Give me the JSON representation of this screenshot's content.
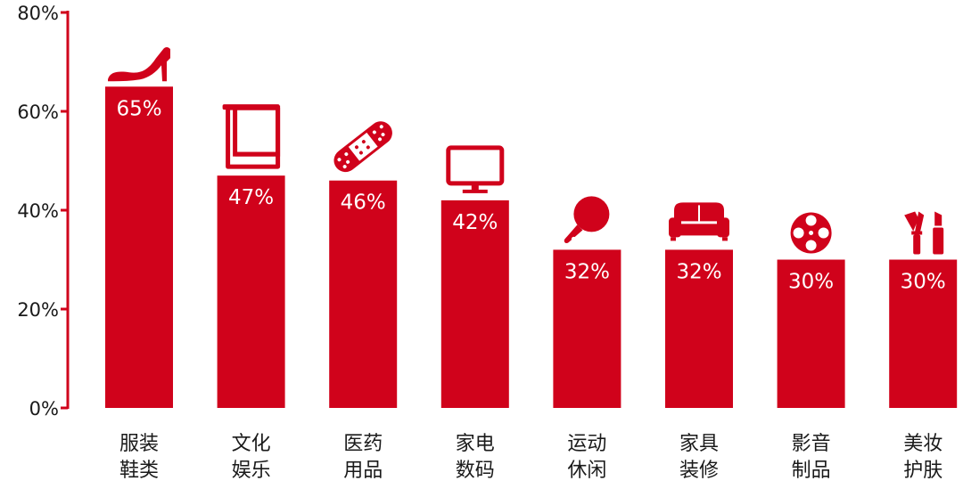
{
  "chart_data": {
    "type": "bar",
    "title": "",
    "xlabel": "",
    "ylabel": "",
    "ylim": [
      0,
      80
    ],
    "yticks": [
      "0%",
      "20%",
      "40%",
      "60%",
      "80%"
    ],
    "grid": false,
    "legend": "none",
    "categories": [
      [
        "服装",
        "鞋类"
      ],
      [
        "文化",
        "娱乐"
      ],
      [
        "医药",
        "用品"
      ],
      [
        "家电",
        "数码"
      ],
      [
        "运动",
        "休闲"
      ],
      [
        "家具",
        "装修"
      ],
      [
        "影音",
        "制品"
      ],
      [
        "美妆",
        "护肤"
      ]
    ],
    "values": [
      65,
      47,
      46,
      42,
      32,
      32,
      30,
      30
    ],
    "value_labels": [
      "65%",
      "47%",
      "46%",
      "42%",
      "32%",
      "32%",
      "30%",
      "30%"
    ],
    "icons": [
      "high-heel-icon",
      "book-icon",
      "bandage-icon",
      "monitor-icon",
      "ping-pong-paddle-icon",
      "sofa-icon",
      "film-reel-icon",
      "makeup-icon"
    ],
    "colors": {
      "bar": "#d0021b",
      "axis": "#d0021b",
      "text": "#1a1a1a",
      "label": "#ffffff"
    }
  }
}
